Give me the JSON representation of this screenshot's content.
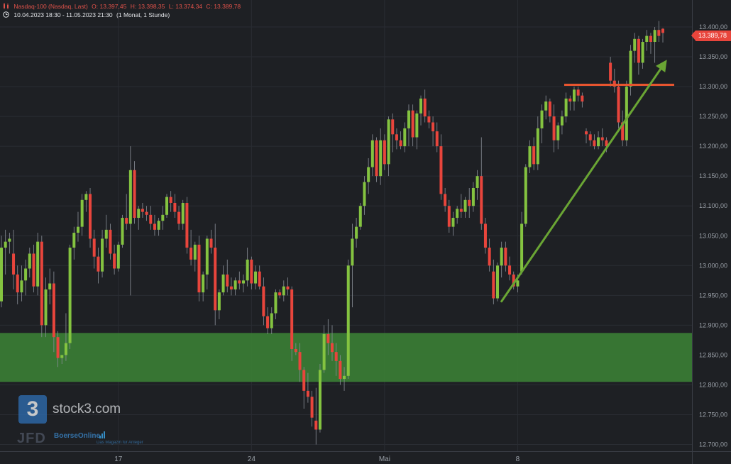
{
  "header": {
    "instrument": "Nasdaq-100 (Nasdaq, Last)",
    "open": "O: 13.397,45",
    "high": "H: 13.398,35",
    "low": "L: 13.374,34",
    "close": "C: 13.389,78",
    "range": "10.04.2023 18:30 - 11.05.2023 21:30",
    "period": "(1 Monat, 1 Stunde)",
    "icons": [
      "candlestick-icon",
      "clock-icon"
    ]
  },
  "last_price_label": "13.389,78",
  "watermarks": {
    "logo_glyph": "3",
    "brand": "stock3.com",
    "jfd": "JFD",
    "boerse": "BoerseOnline",
    "boerse_sub": "Das Magazin für Anleger"
  },
  "colors": {
    "background": "#1e2024",
    "bull": "#84c340",
    "bear": "#e8453c",
    "support_zone": "#3a7d35",
    "trend_arrow": "#6aa534",
    "resistance_line": "#e8552f"
  },
  "chart_data": {
    "type": "candlestick",
    "title": "Nasdaq-100 (Nasdaq, Last)",
    "interval": "1 Stunde",
    "y_ticks": [
      12700,
      12750,
      12800,
      12850,
      12900,
      12950,
      13000,
      13050,
      13100,
      13150,
      13200,
      13250,
      13300,
      13350,
      13400
    ],
    "y_tick_labels": [
      "12.700,00",
      "12.750,00",
      "12.800,00",
      "12.850,00",
      "12.900,00",
      "12.950,00",
      "13.000,00",
      "13.050,00",
      "13.100,00",
      "13.150,00",
      "13.200,00",
      "13.250,00",
      "13.300,00",
      "13.350,00",
      "13.400,00"
    ],
    "ylim": [
      12690,
      13425
    ],
    "x_labels": [
      {
        "label": "17",
        "bar": 29
      },
      {
        "label": "24",
        "bar": 62
      },
      {
        "label": "Mai",
        "bar": 95
      },
      {
        "label": "8",
        "bar": 128
      }
    ],
    "ohlc": [
      [
        12940,
        13050,
        12930,
        13030
      ],
      [
        13030,
        13060,
        12985,
        13040
      ],
      [
        13040,
        13055,
        13020,
        13045
      ],
      [
        13020,
        13060,
        12960,
        12985
      ],
      [
        12985,
        13000,
        12935,
        12955
      ],
      [
        12955,
        13000,
        12940,
        12975
      ],
      [
        12975,
        13010,
        12950,
        12995
      ],
      [
        12995,
        13030,
        12980,
        13020
      ],
      [
        13020,
        13035,
        12955,
        12965
      ],
      [
        12965,
        13055,
        12950,
        13040
      ],
      [
        13040,
        13050,
        12880,
        12900
      ],
      [
        12900,
        12980,
        12880,
        12960
      ],
      [
        12960,
        12995,
        12935,
        12970
      ],
      [
        12970,
        12990,
        12855,
        12880
      ],
      [
        12880,
        12890,
        12830,
        12845
      ],
      [
        12845,
        12850,
        12835,
        12850
      ],
      [
        12850,
        12920,
        12840,
        12870
      ],
      [
        12870,
        13035,
        12860,
        13030
      ],
      [
        13030,
        13065,
        13010,
        13055
      ],
      [
        13055,
        13090,
        13040,
        13065
      ],
      [
        13065,
        13120,
        13050,
        13110
      ],
      [
        13110,
        13125,
        13090,
        13120
      ],
      [
        13120,
        13130,
        13030,
        13045
      ],
      [
        13045,
        13060,
        12995,
        13015
      ],
      [
        13015,
        13030,
        12970,
        12990
      ],
      [
        12990,
        13060,
        12980,
        13045
      ],
      [
        13045,
        13085,
        13030,
        13060
      ],
      [
        13060,
        13070,
        13010,
        13020
      ],
      [
        13020,
        13035,
        12985,
        12995
      ],
      [
        12995,
        13040,
        12990,
        13035
      ],
      [
        13035,
        13085,
        13030,
        13080
      ],
      [
        13080,
        13120,
        13060,
        13070
      ],
      [
        13070,
        13200,
        12950,
        13160
      ],
      [
        13160,
        13175,
        13070,
        13080
      ],
      [
        13080,
        13100,
        13060,
        13095
      ],
      [
        13095,
        13105,
        13080,
        13090
      ],
      [
        13090,
        13100,
        13075,
        13085
      ],
      [
        13085,
        13100,
        13060,
        13070
      ],
      [
        13070,
        13085,
        13050,
        13060
      ],
      [
        13060,
        13080,
        13050,
        13075
      ],
      [
        13075,
        13100,
        13060,
        13085
      ],
      [
        13085,
        13120,
        13080,
        13115
      ],
      [
        13115,
        13125,
        13090,
        13105
      ],
      [
        13105,
        13120,
        13080,
        13090
      ],
      [
        13090,
        13100,
        13060,
        13070
      ],
      [
        13070,
        13110,
        13060,
        13105
      ],
      [
        13105,
        13115,
        13020,
        13030
      ],
      [
        13030,
        13060,
        13000,
        13010
      ],
      [
        13010,
        13040,
        12990,
        13035
      ],
      [
        13035,
        13050,
        12940,
        12955
      ],
      [
        12955,
        12990,
        12940,
        12985
      ],
      [
        12985,
        13050,
        12960,
        13045
      ],
      [
        13045,
        13060,
        13020,
        13030
      ],
      [
        13030,
        13070,
        12900,
        12925
      ],
      [
        12925,
        12960,
        12910,
        12955
      ],
      [
        12955,
        13000,
        12950,
        12985
      ],
      [
        12985,
        13010,
        12955,
        12965
      ],
      [
        12965,
        12980,
        12950,
        12960
      ],
      [
        12960,
        12980,
        12950,
        12975
      ],
      [
        12975,
        12990,
        12960,
        12970
      ],
      [
        12970,
        12985,
        12955,
        12975
      ],
      [
        12975,
        13030,
        12965,
        13010
      ],
      [
        13010,
        13015,
        12960,
        12970
      ],
      [
        12970,
        13000,
        12960,
        12990
      ],
      [
        12990,
        13000,
        12960,
        12965
      ],
      [
        12965,
        12980,
        12900,
        12915
      ],
      [
        12915,
        12930,
        12885,
        12895
      ],
      [
        12895,
        12930,
        12885,
        12920
      ],
      [
        12920,
        12960,
        12910,
        12955
      ],
      [
        12955,
        12960,
        12945,
        12950
      ],
      [
        12950,
        12975,
        12940,
        12965
      ],
      [
        12965,
        12980,
        12950,
        12960
      ],
      [
        12960,
        12965,
        12840,
        12860
      ],
      [
        12860,
        12870,
        12850,
        12855
      ],
      [
        12855,
        12870,
        12805,
        12825
      ],
      [
        12825,
        12830,
        12760,
        12790
      ],
      [
        12790,
        12820,
        12770,
        12780
      ],
      [
        12780,
        12790,
        12730,
        12745
      ],
      [
        12740,
        12795,
        12700,
        12725
      ],
      [
        12725,
        12835,
        12720,
        12825
      ],
      [
        12825,
        12900,
        12820,
        12885
      ],
      [
        12885,
        12910,
        12850,
        12870
      ],
      [
        12870,
        12900,
        12840,
        12855
      ],
      [
        12855,
        12870,
        12815,
        12840
      ],
      [
        12840,
        12850,
        12800,
        12810
      ],
      [
        12810,
        12830,
        12790,
        12815
      ],
      [
        12815,
        13010,
        12810,
        13000
      ],
      [
        13000,
        13070,
        12930,
        13045
      ],
      [
        13045,
        13080,
        13030,
        13065
      ],
      [
        13065,
        13105,
        13060,
        13100
      ],
      [
        13100,
        13150,
        13085,
        13140
      ],
      [
        13140,
        13180,
        13120,
        13165
      ],
      [
        13165,
        13220,
        13150,
        13210
      ],
      [
        13210,
        13215,
        13140,
        13150
      ],
      [
        13150,
        13230,
        13135,
        13210
      ],
      [
        13210,
        13220,
        13160,
        13170
      ],
      [
        13170,
        13250,
        13150,
        13245
      ],
      [
        13245,
        13255,
        13190,
        13220
      ],
      [
        13220,
        13230,
        13195,
        13210
      ],
      [
        13210,
        13225,
        13195,
        13200
      ],
      [
        13200,
        13240,
        13190,
        13230
      ],
      [
        13230,
        13270,
        13200,
        13260
      ],
      [
        13260,
        13270,
        13200,
        13215
      ],
      [
        13215,
        13260,
        13195,
        13255
      ],
      [
        13255,
        13285,
        13235,
        13280
      ],
      [
        13280,
        13295,
        13240,
        13250
      ],
      [
        13250,
        13260,
        13230,
        13240
      ],
      [
        13240,
        13250,
        13200,
        13225
      ],
      [
        13225,
        13240,
        13190,
        13200
      ],
      [
        13200,
        13220,
        13110,
        13120
      ],
      [
        13120,
        13130,
        13090,
        13100
      ],
      [
        13100,
        13110,
        13055,
        13065
      ],
      [
        13065,
        13090,
        13050,
        13080
      ],
      [
        13080,
        13100,
        13070,
        13095
      ],
      [
        13095,
        13120,
        13080,
        13090
      ],
      [
        13090,
        13115,
        13080,
        13110
      ],
      [
        13110,
        13130,
        13080,
        13100
      ],
      [
        13100,
        13140,
        13090,
        13130
      ],
      [
        13130,
        13160,
        13110,
        13150
      ],
      [
        13150,
        13215,
        13060,
        13070
      ],
      [
        13070,
        13080,
        13020,
        13030
      ],
      [
        13030,
        13045,
        12990,
        13000
      ],
      [
        12990,
        13010,
        12935,
        12945
      ],
      [
        12945,
        13005,
        12940,
        13000
      ],
      [
        13000,
        13040,
        12980,
        13030
      ],
      [
        13030,
        13040,
        12990,
        13000
      ],
      [
        13000,
        13015,
        12975,
        12985
      ],
      [
        12985,
        12990,
        12960,
        12965
      ],
      [
        12965,
        12985,
        12955,
        12975
      ],
      [
        12990,
        13090,
        12985,
        13070
      ],
      [
        13070,
        13170,
        13065,
        13165
      ],
      [
        13165,
        13210,
        13155,
        13200
      ],
      [
        13200,
        13215,
        13160,
        13170
      ],
      [
        13170,
        13250,
        13160,
        13230
      ],
      [
        13230,
        13270,
        13205,
        13260
      ],
      [
        13260,
        13285,
        13245,
        13275
      ],
      [
        13275,
        13280,
        13240,
        13250
      ],
      [
        13250,
        13270,
        13190,
        13210
      ],
      [
        13210,
        13240,
        13195,
        13235
      ],
      [
        13235,
        13260,
        13220,
        13250
      ],
      [
        13250,
        13290,
        13240,
        13280
      ],
      [
        13280,
        13285,
        13260,
        13275
      ],
      [
        13275,
        13300,
        13260,
        13295
      ],
      [
        13295,
        13300,
        13275,
        13285
      ],
      [
        13285,
        13290,
        13265,
        13275
      ],
      [
        13225,
        13230,
        13205,
        13220
      ],
      [
        13220,
        13225,
        13200,
        13210
      ],
      [
        13210,
        13220,
        13195,
        13200
      ],
      [
        13200,
        13225,
        13195,
        13215
      ],
      [
        13215,
        13230,
        13200,
        13210
      ],
      [
        13210,
        13215,
        13190,
        13200
      ],
      [
        13340,
        13350,
        13300,
        13310
      ],
      [
        13310,
        13330,
        13290,
        13300
      ],
      [
        13300,
        13310,
        13230,
        13240
      ],
      [
        13240,
        13260,
        13200,
        13210
      ],
      [
        13210,
        13310,
        13200,
        13300
      ],
      [
        13300,
        13370,
        13285,
        13360
      ],
      [
        13360,
        13390,
        13340,
        13380
      ],
      [
        13380,
        13385,
        13320,
        13340
      ],
      [
        13340,
        13380,
        13330,
        13375
      ],
      [
        13375,
        13395,
        13360,
        13385
      ],
      [
        13385,
        13390,
        13355,
        13375
      ],
      [
        13375,
        13400,
        13340,
        13395
      ],
      [
        13395,
        13410,
        13375,
        13385
      ],
      [
        13397,
        13398,
        13374,
        13390
      ]
    ],
    "support_zone": [
      12805,
      12887
    ],
    "resistance_level": 13303,
    "trend_line": {
      "from": {
        "bar": 124,
        "price": 12940
      },
      "to": {
        "bar": 165,
        "price": 13345
      }
    },
    "last_price": 13389.78,
    "grid": true
  }
}
